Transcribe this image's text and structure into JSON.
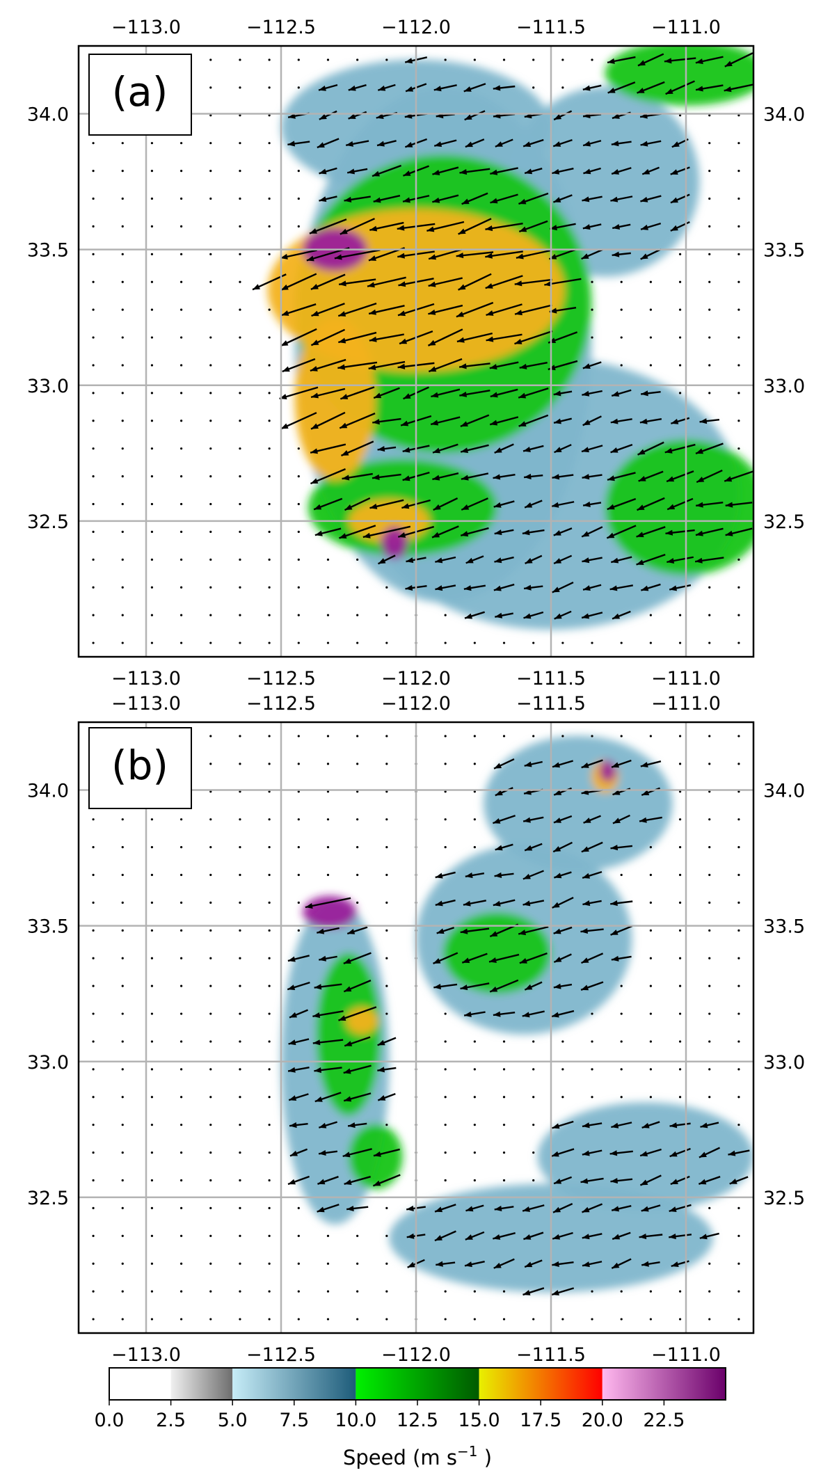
{
  "chart_data": [
    {
      "type": "heatmap",
      "panel_label": "(a)",
      "x_ticks": [
        -113.0,
        -112.5,
        -112.0,
        -111.5,
        -111.0
      ],
      "x_tick_labels": [
        "−113.0",
        "−112.5",
        "−112.0",
        "−111.5",
        "−111.0"
      ],
      "y_ticks": [
        34.0,
        33.5,
        33.0,
        32.5
      ],
      "y_tick_labels": [
        "34.0",
        "33.5",
        "33.0",
        "32.5"
      ],
      "xlim": [
        -113.25,
        -110.75
      ],
      "ylim": [
        32.0,
        34.25
      ],
      "grid": true,
      "field": "wind speed with wind vectors",
      "features": [
        {
          "type": "blob",
          "level": "moderate",
          "cx": -111.9,
          "cy": 33.15,
          "rx": 0.55,
          "ry": 0.95
        },
        {
          "type": "blob",
          "level": "moderate",
          "cx": -111.5,
          "cy": 32.6,
          "rx": 0.7,
          "ry": 0.5
        },
        {
          "type": "blob",
          "level": "moderate",
          "cx": -111.3,
          "cy": 33.75,
          "rx": 0.35,
          "ry": 0.35
        },
        {
          "type": "blob",
          "level": "moderate",
          "cx": -112.0,
          "cy": 33.95,
          "rx": 0.5,
          "ry": 0.25
        },
        {
          "type": "blob",
          "level": "high",
          "cx": -111.9,
          "cy": 33.3,
          "rx": 0.55,
          "ry": 0.55
        },
        {
          "type": "blob",
          "level": "high",
          "cx": -112.05,
          "cy": 32.55,
          "rx": 0.35,
          "ry": 0.18
        },
        {
          "type": "blob",
          "level": "high",
          "cx": -111.0,
          "cy": 32.55,
          "rx": 0.3,
          "ry": 0.25
        },
        {
          "type": "blob",
          "level": "high",
          "cx": -111.0,
          "cy": 34.15,
          "rx": 0.3,
          "ry": 0.12
        },
        {
          "type": "blob",
          "level": "very-high",
          "cx": -112.0,
          "cy": 33.35,
          "rx": 0.55,
          "ry": 0.3
        },
        {
          "type": "blob",
          "level": "very-high",
          "cx": -112.3,
          "cy": 32.95,
          "rx": 0.15,
          "ry": 0.3
        },
        {
          "type": "blob",
          "level": "very-high",
          "cx": -112.1,
          "cy": 32.5,
          "rx": 0.15,
          "ry": 0.08
        },
        {
          "type": "blob",
          "level": "extreme",
          "cx": -112.3,
          "cy": 33.5,
          "rx": 0.12,
          "ry": 0.08
        },
        {
          "type": "blob",
          "level": "extreme",
          "cx": -112.08,
          "cy": 32.42,
          "rx": 0.05,
          "ry": 0.06
        }
      ]
    },
    {
      "type": "heatmap",
      "panel_label": "(b)",
      "x_ticks": [
        -113.0,
        -112.5,
        -112.0,
        -111.5,
        -111.0
      ],
      "x_tick_labels": [
        "−113.0",
        "−112.5",
        "−112.0",
        "−111.5",
        "−111.0"
      ],
      "y_ticks": [
        34.0,
        33.5,
        33.0,
        32.5
      ],
      "y_tick_labels": [
        "34.0",
        "33.5",
        "33.0",
        "32.5"
      ],
      "xlim": [
        -113.25,
        -110.75
      ],
      "ylim": [
        32.0,
        34.25
      ],
      "grid": true,
      "field": "wind speed with wind vectors",
      "features": [
        {
          "type": "blob",
          "level": "moderate",
          "cx": -112.3,
          "cy": 33.0,
          "rx": 0.2,
          "ry": 0.6
        },
        {
          "type": "blob",
          "level": "moderate",
          "cx": -111.6,
          "cy": 33.45,
          "rx": 0.4,
          "ry": 0.35
        },
        {
          "type": "blob",
          "level": "moderate",
          "cx": -111.5,
          "cy": 32.35,
          "rx": 0.6,
          "ry": 0.2
        },
        {
          "type": "blob",
          "level": "moderate",
          "cx": -111.15,
          "cy": 32.65,
          "rx": 0.4,
          "ry": 0.2
        },
        {
          "type": "blob",
          "level": "moderate",
          "cx": -111.4,
          "cy": 33.95,
          "rx": 0.35,
          "ry": 0.25
        },
        {
          "type": "blob",
          "level": "high",
          "cx": -112.25,
          "cy": 33.1,
          "rx": 0.12,
          "ry": 0.3
        },
        {
          "type": "blob",
          "level": "high",
          "cx": -111.7,
          "cy": 33.4,
          "rx": 0.2,
          "ry": 0.15
        },
        {
          "type": "blob",
          "level": "high",
          "cx": -112.15,
          "cy": 32.65,
          "rx": 0.1,
          "ry": 0.12
        },
        {
          "type": "blob",
          "level": "very-high",
          "cx": -112.2,
          "cy": 33.15,
          "rx": 0.06,
          "ry": 0.05
        },
        {
          "type": "blob",
          "level": "very-high",
          "cx": -111.3,
          "cy": 34.05,
          "rx": 0.05,
          "ry": 0.06
        },
        {
          "type": "blob",
          "level": "extreme",
          "cx": -112.32,
          "cy": 33.55,
          "rx": 0.1,
          "ry": 0.06
        },
        {
          "type": "blob",
          "level": "extreme",
          "cx": -111.29,
          "cy": 34.07,
          "rx": 0.03,
          "ry": 0.04
        }
      ]
    }
  ],
  "colorbar": {
    "label": "Speed (m s",
    "label_exponent": "−1",
    "label_suffix": " )",
    "ticks": [
      0.0,
      2.5,
      5.0,
      7.5,
      10.0,
      12.5,
      15.0,
      17.5,
      20.0,
      22.5
    ],
    "tick_labels": [
      "0.0",
      "2.5",
      "5.0",
      "7.5",
      "10.0",
      "12.5",
      "15.0",
      "17.5",
      "20.0",
      "22.5"
    ],
    "range": [
      0.0,
      25.0
    ],
    "segments": [
      {
        "from": 0.0,
        "to": 2.5,
        "colors": [
          "#ffffff",
          "#ffffff"
        ]
      },
      {
        "from": 2.5,
        "to": 5.0,
        "colors": [
          "#f0f0f0",
          "#6e6e6e"
        ]
      },
      {
        "from": 5.0,
        "to": 10.0,
        "colors": [
          "#c6ecf7",
          "#1e5c7a"
        ]
      },
      {
        "from": 10.0,
        "to": 15.0,
        "colors": [
          "#00f000",
          "#005a00"
        ]
      },
      {
        "from": 15.0,
        "to": 20.0,
        "colors": [
          "#e8f000",
          "#ff0000"
        ]
      },
      {
        "from": 20.0,
        "to": 25.0,
        "colors": [
          "#ffb8ee",
          "#6a006a"
        ]
      }
    ]
  },
  "level_colors": {
    "weak": "#b7b7b7",
    "moderate": "#7fb6cc",
    "high": "#17c417",
    "very-high": "#f3b21b",
    "extreme": "#9b1f9b"
  }
}
